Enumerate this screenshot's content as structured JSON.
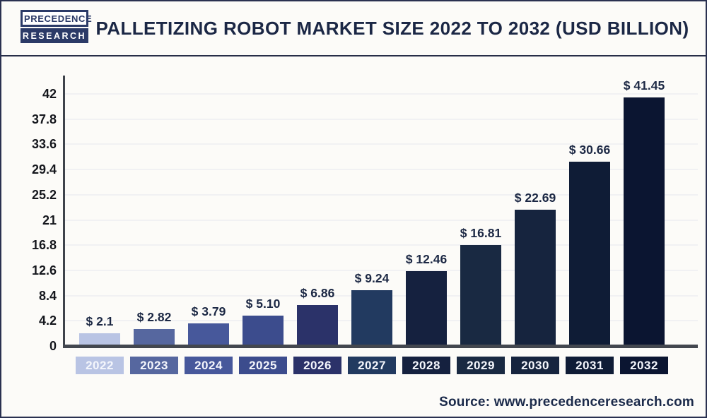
{
  "header": {
    "logo": {
      "line1": "PRECEDENCE",
      "line2": "RESEARCH"
    },
    "title": "PALLETIZING ROBOT MARKET SIZE 2022 TO 2032 (USD BILLION)"
  },
  "chart_data": {
    "type": "bar",
    "title": "Palletizing Robot Market Size 2022 to 2032 (USD Billion)",
    "categories": [
      "2022",
      "2023",
      "2024",
      "2025",
      "2026",
      "2027",
      "2028",
      "2029",
      "2030",
      "2031",
      "2032"
    ],
    "values": [
      2.1,
      2.82,
      3.79,
      5.1,
      6.86,
      9.24,
      12.46,
      16.81,
      22.69,
      30.66,
      41.45
    ],
    "value_labels": [
      "$ 2.1",
      "$ 2.82",
      "$ 3.79",
      "$ 5.10",
      "$ 6.86",
      "$ 9.24",
      "$ 12.46",
      "$ 16.81",
      "$ 22.69",
      "$ 30.66",
      "$ 41.45"
    ],
    "bar_colors": [
      "#b9c4e4",
      "#56679f",
      "#47589b",
      "#3c4c8d",
      "#2b3269",
      "#223a60",
      "#15213f",
      "#192942",
      "#16243e",
      "#0f1c36",
      "#0b1531"
    ],
    "y_ticks": [
      0,
      4.2,
      8.4,
      12.6,
      16.8,
      21,
      25.2,
      29.4,
      33.6,
      37.8,
      42
    ],
    "y_tick_labels": [
      "0",
      "4.2",
      "8.4",
      "12.6",
      "16.8",
      "21",
      "25.2",
      "29.4",
      "33.6",
      "37.8",
      "42"
    ],
    "ylim": [
      0,
      42
    ],
    "xlabel": "",
    "ylabel": "",
    "grid": "horizontal",
    "legend": "none"
  },
  "footer": {
    "source": "Source: www.precedenceresearch.com"
  },
  "colors": {
    "accent_navy": "#1b2745",
    "logo_navy": "#2b3a67",
    "axis": "#43474f",
    "gridline": "#f1f1f3",
    "background": "#fcfbf8"
  }
}
